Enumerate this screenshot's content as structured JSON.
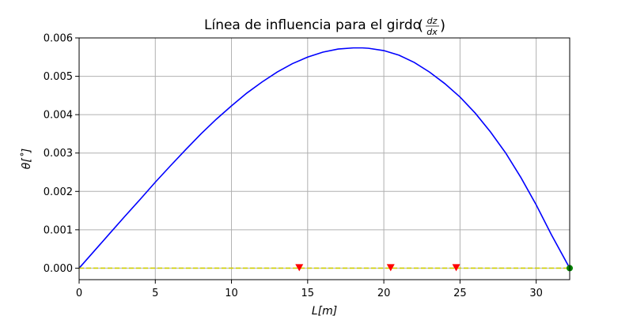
{
  "chart_data": {
    "type": "line",
    "title": "Línea de influencia para el girdo",
    "title_fraction": {
      "numerator": "dz",
      "denominator": "dx"
    },
    "xlabel": "L[m]",
    "ylabel": "θ[˚]",
    "xlim": [
      0,
      32.2
    ],
    "ylim": [
      -0.0003,
      0.006
    ],
    "xticks": [
      0,
      5,
      10,
      15,
      20,
      25,
      30
    ],
    "yticks": [
      0.0,
      0.001,
      0.002,
      0.003,
      0.004,
      0.005,
      0.006
    ],
    "xtick_labels": [
      "0",
      "5",
      "10",
      "15",
      "20",
      "25",
      "30"
    ],
    "ytick_labels": [
      "0.000",
      "0.001",
      "0.002",
      "0.003",
      "0.004",
      "0.005",
      "0.006"
    ],
    "grid": true,
    "series": [
      {
        "style": "solid",
        "color": "#0000ff",
        "x": [
          0,
          1,
          2,
          3,
          4,
          5,
          6,
          7,
          8,
          9,
          10,
          11,
          12,
          13,
          14,
          15,
          16,
          17,
          18,
          18.6,
          19,
          20,
          21,
          22,
          23,
          24,
          25,
          26,
          27,
          28,
          29,
          30,
          31,
          32.2
        ],
        "y": [
          0,
          0.00045,
          0.0009,
          0.00135,
          0.00179,
          0.00224,
          0.00267,
          0.00309,
          0.0035,
          0.00388,
          0.00423,
          0.00456,
          0.00485,
          0.00511,
          0.00533,
          0.0055,
          0.00563,
          0.00571,
          0.00574,
          0.00574,
          0.00573,
          0.00567,
          0.00555,
          0.00536,
          0.00511,
          0.00481,
          0.00446,
          0.00404,
          0.00355,
          0.003,
          0.00236,
          0.00165,
          0.00087,
          0
        ]
      },
      {
        "style": "dashed",
        "color": "#cfcf00",
        "x": [
          0,
          32.2
        ],
        "y": [
          0,
          0
        ]
      }
    ],
    "markers": [
      {
        "shape": "triangle-down",
        "color": "#ff0000",
        "x": 14.45,
        "y": 0
      },
      {
        "shape": "triangle-down",
        "color": "#ff0000",
        "x": 20.45,
        "y": 0
      },
      {
        "shape": "triangle-down",
        "color": "#ff0000",
        "x": 24.75,
        "y": 0
      },
      {
        "shape": "circle",
        "color": "#008000",
        "x": 32.2,
        "y": 0
      }
    ]
  }
}
